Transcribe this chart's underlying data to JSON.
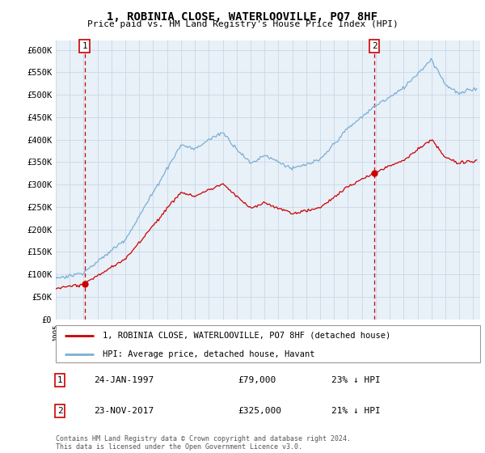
{
  "title": "1, ROBINIA CLOSE, WATERLOOVILLE, PO7 8HF",
  "subtitle": "Price paid vs. HM Land Registry's House Price Index (HPI)",
  "ylim": [
    0,
    620000
  ],
  "yticks": [
    0,
    50000,
    100000,
    150000,
    200000,
    250000,
    300000,
    350000,
    400000,
    450000,
    500000,
    550000,
    600000
  ],
  "ytick_labels": [
    "£0",
    "£50K",
    "£100K",
    "£150K",
    "£200K",
    "£250K",
    "£300K",
    "£350K",
    "£400K",
    "£450K",
    "£500K",
    "£550K",
    "£600K"
  ],
  "xlim_start": 1995.0,
  "xlim_end": 2025.5,
  "sale1_date": 1997.07,
  "sale1_price": 79000,
  "sale2_date": 2017.9,
  "sale2_price": 325000,
  "line_color_property": "#cc0000",
  "line_color_hpi": "#7bafd4",
  "bg_color": "#ffffff",
  "plot_bg": "#e8f0f8",
  "grid_color": "#c8d8e8",
  "legend_label1": "1, ROBINIA CLOSE, WATERLOOVILLE, PO7 8HF (detached house)",
  "legend_label2": "HPI: Average price, detached house, Havant",
  "annotation1_date": "24-JAN-1997",
  "annotation1_price": "£79,000",
  "annotation1_hpi": "23% ↓ HPI",
  "annotation2_date": "23-NOV-2017",
  "annotation2_price": "£325,000",
  "annotation2_hpi": "21% ↓ HPI",
  "footer": "Contains HM Land Registry data © Crown copyright and database right 2024.\nThis data is licensed under the Open Government Licence v3.0."
}
